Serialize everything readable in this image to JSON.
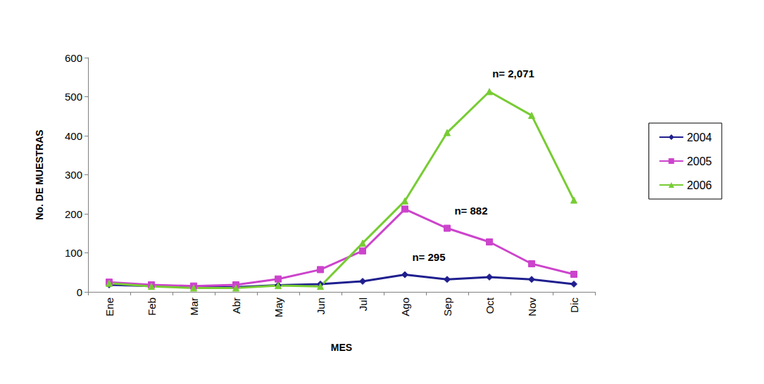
{
  "chart_data": {
    "type": "line",
    "x_label": "MES",
    "y_label": "No. DE MUESTRAS",
    "categories": [
      "Ene",
      "Feb",
      "Mar",
      "Abr",
      "May",
      "Jun",
      "Jul",
      "Ago",
      "Sep",
      "Oct",
      "Nov",
      "Dic"
    ],
    "series": [
      {
        "name": "2004",
        "color": "#1f1f8f",
        "marker": "diamond",
        "values": [
          18,
          15,
          12,
          12,
          17,
          20,
          27,
          44,
          32,
          38,
          32,
          20
        ]
      },
      {
        "name": "2005",
        "color": "#cc44cc",
        "marker": "square",
        "values": [
          25,
          18,
          15,
          18,
          33,
          57,
          105,
          212,
          163,
          128,
          72,
          45
        ]
      },
      {
        "name": "2006",
        "color": "#77cc33",
        "marker": "triangle",
        "values": [
          22,
          14,
          10,
          10,
          16,
          14,
          125,
          233,
          408,
          513,
          452,
          235
        ]
      }
    ],
    "annotations": [
      {
        "text": "n= 2,071",
        "series": "2006",
        "category": "Oct"
      },
      {
        "text": "n= 882",
        "series": "2005",
        "category": "Sep"
      },
      {
        "text": "n= 295",
        "series": "2004",
        "category": "Ago"
      }
    ],
    "ylim": [
      0,
      600
    ],
    "yticks": [
      0,
      100,
      200,
      300,
      400,
      500,
      600
    ],
    "legend": "right",
    "grid": false
  }
}
